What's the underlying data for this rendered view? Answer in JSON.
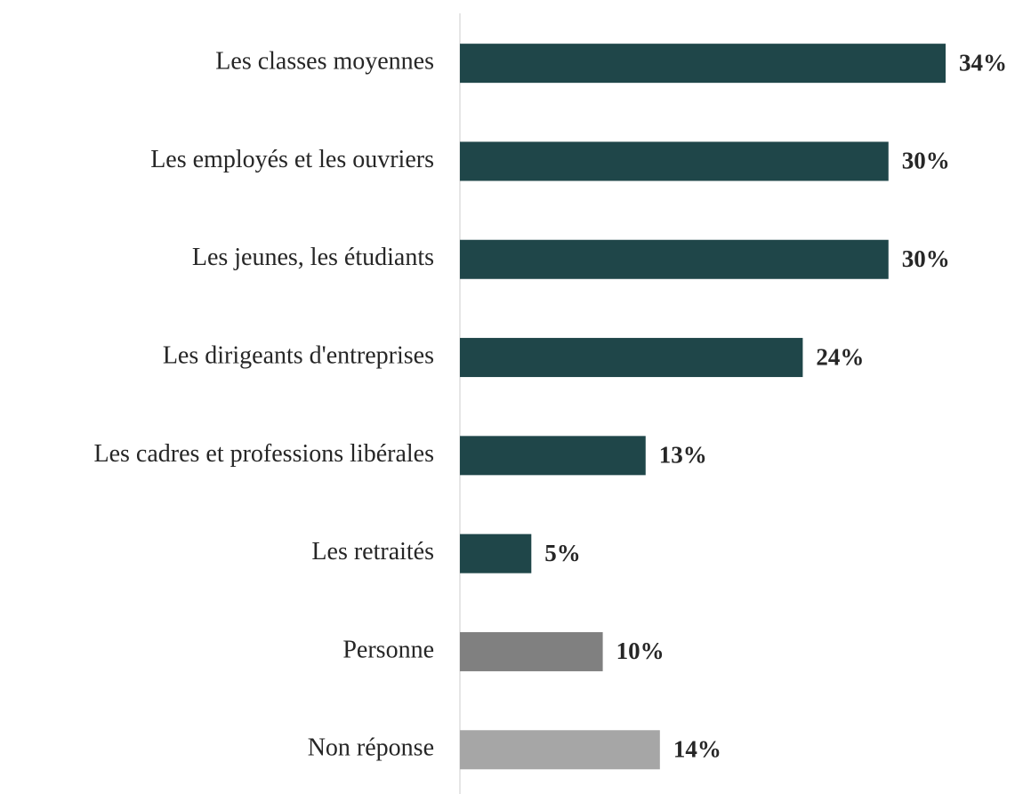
{
  "chart_data": {
    "type": "hbar",
    "categories": [
      "Les classes moyennes",
      "Les employés et les ouvriers",
      "Les jeunes, les étudiants",
      "Les dirigeants d'entreprises",
      "Les cadres et professions libérales",
      "Les retraités",
      "Personne",
      "Non réponse"
    ],
    "values": [
      34,
      30,
      30,
      24,
      13,
      5,
      10,
      14
    ],
    "value_labels": [
      "34%",
      "30%",
      "30%",
      "24%",
      "13%",
      "5%",
      "10%",
      "14%"
    ],
    "colors": [
      "#1f4649",
      "#1f4649",
      "#1f4649",
      "#1f4649",
      "#1f4649",
      "#1f4649",
      "#808080",
      "#a6a6a6"
    ]
  }
}
